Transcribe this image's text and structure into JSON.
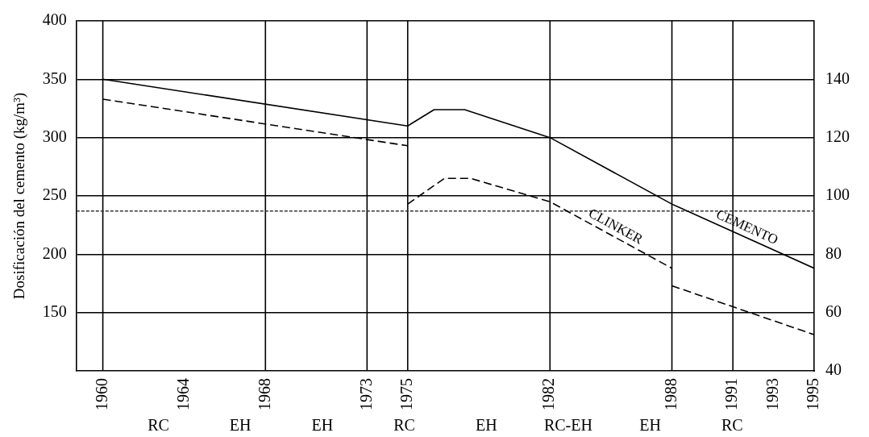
{
  "chart_data": {
    "type": "line",
    "ylabel": "Dosificación del cemento (kg/m³)",
    "xlim": [
      1958.7,
      1995
    ],
    "xticks": [
      1960,
      1964,
      1968,
      1973,
      1975,
      1982,
      1988,
      1991,
      1993,
      1995
    ],
    "ylim": [
      100,
      400
    ],
    "yticks": [
      150,
      200,
      250,
      300,
      350,
      400
    ],
    "y2lim": [
      40,
      160
    ],
    "y2ticks": [
      40,
      60,
      80,
      100,
      120,
      140
    ],
    "grid": "y",
    "legend": false,
    "marker": "none",
    "series": [
      {
        "name": "CEMENTO",
        "color": "#000000",
        "line_style": "solid",
        "x": [
          1960,
          1975,
          1976.3,
          1977.8,
          1982,
          1988,
          1995
        ],
        "values": [
          350,
          310,
          324,
          324,
          300,
          243,
          188
        ]
      },
      {
        "color": "#000000",
        "line_style": "dashed",
        "x": [
          1960,
          1975
        ],
        "values": [
          333,
          293
        ]
      },
      {
        "name": "CLINKER",
        "color": "#000000",
        "line_style": "dashed",
        "x": [
          1975,
          1976.8,
          1978.1,
          1982,
          1988
        ],
        "values": [
          243,
          265,
          265,
          245,
          188
        ]
      },
      {
        "color": "#000000",
        "line_style": "dashed",
        "x": [
          1988,
          1995
        ],
        "values": [
          173,
          131
        ]
      }
    ],
    "annotations": [
      "RC",
      "EH",
      "EH",
      "RC",
      "EH",
      "RC-EH",
      "EH",
      "RC"
    ],
    "ref_lines": [
      {
        "axis": "x",
        "value": 1960,
        "color": "#000000",
        "line_style": "solid"
      },
      {
        "axis": "x",
        "value": 1968,
        "color": "#000000",
        "line_style": "solid"
      },
      {
        "axis": "x",
        "value": 1973,
        "color": "#000000",
        "line_style": "solid"
      },
      {
        "axis": "x",
        "value": 1975,
        "color": "#000000",
        "line_style": "solid"
      },
      {
        "axis": "x",
        "value": 1982,
        "color": "#000000",
        "line_style": "solid"
      },
      {
        "axis": "x",
        "value": 1988,
        "color": "#000000",
        "line_style": "solid"
      },
      {
        "axis": "x",
        "value": 1991,
        "color": "#000000",
        "line_style": "solid"
      },
      {
        "axis": "y",
        "value": 237,
        "color": "#333333",
        "line_style": "dashed"
      }
    ]
  }
}
